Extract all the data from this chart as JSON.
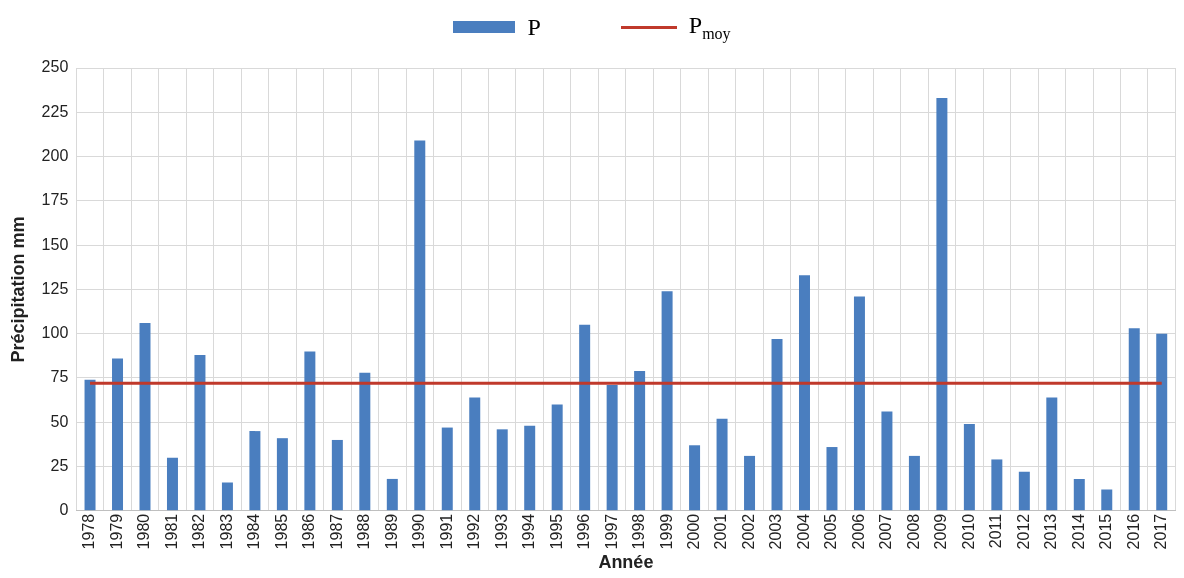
{
  "chart_data": {
    "type": "bar",
    "xlabel": "Année",
    "ylabel": "Précipitation mm",
    "categories": [
      "1978",
      "1979",
      "1980",
      "1981",
      "1982",
      "1983",
      "1984",
      "1985",
      "1986",
      "1987",
      "1988",
      "1989",
      "1990",
      "1991",
      "1992",
      "1993",
      "1994",
      "1995",
      "1996",
      "1997",
      "1998",
      "1999",
      "2000",
      "2001",
      "2002",
      "2003",
      "2004",
      "2005",
      "2006",
      "2007",
      "2008",
      "2009",
      "2010",
      "2011",
      "2012",
      "2013",
      "2014",
      "2015",
      "2016",
      "2017"
    ],
    "series": [
      {
        "name": "P",
        "color": "#4a7ebf",
        "values": [
          74,
          86,
          106,
          30,
          88,
          16,
          45,
          41,
          90,
          40,
          78,
          18,
          209,
          47,
          64,
          46,
          48,
          60,
          105,
          71,
          79,
          124,
          37,
          52,
          31,
          97,
          133,
          36,
          121,
          56,
          31,
          233,
          49,
          29,
          22,
          64,
          18,
          12,
          103,
          100
        ]
      },
      {
        "name": "P$_{moy}$",
        "type": "line",
        "color": "#c0392b",
        "values": [
          72,
          72,
          72,
          72,
          72,
          72,
          72,
          72,
          72,
          72,
          72,
          72,
          72,
          72,
          72,
          72,
          72,
          72,
          72,
          72,
          72,
          72,
          72,
          72,
          72,
          72,
          72,
          72,
          72,
          72,
          72,
          72,
          72,
          72,
          72,
          72,
          72,
          72,
          72,
          72
        ]
      }
    ],
    "ylim": [
      0,
      250
    ],
    "yticks": [
      0,
      25,
      50,
      75,
      100,
      125,
      150,
      175,
      200,
      225,
      250
    ],
    "grid": true,
    "legend": "top",
    "marker": "none"
  }
}
